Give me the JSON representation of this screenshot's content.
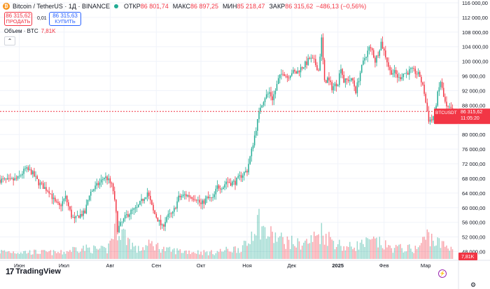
{
  "header": {
    "coin_icon": "bitcoin-icon",
    "title": "Bitcoin / TetherUS · 1Д · BINANCE",
    "open_label": "ОТКР",
    "open_value": "86 801,74",
    "high_label": "МАКС",
    "high_value": "86 897,25",
    "low_label": "МИН",
    "low_value": "85 218,47",
    "close_label": "ЗАКР",
    "close_value": "86 315,62",
    "change_value": "−486,13 (−0,56%)"
  },
  "trade": {
    "sell_price": "86 315,62",
    "sell_label": "ПРОДАТЬ",
    "spread": "0,01",
    "buy_price": "86 315,63",
    "buy_label": "КУПИТЬ"
  },
  "volume_legend": {
    "label": "Объем · BTC",
    "value": "7,81K"
  },
  "collapse_icon": "chevron-up-icon",
  "logo": {
    "text": "TradingView",
    "icon": "tradingview-logo-icon"
  },
  "settings_icon": "gear-icon",
  "bolt_icon": "lightning-icon",
  "price_label": {
    "symbol": "BTCUSDT",
    "price": "86 315,62",
    "countdown": "11:05:20"
  },
  "volume_label": "7,81K",
  "colors": {
    "up": "#22ab94",
    "down": "#f23645",
    "price_line": "#f23645",
    "grid": "#f0f3fa"
  },
  "chart_data": {
    "type": "candlestick",
    "y_axis_ticks": [
      "116 000,00",
      "112 000,00",
      "108 000,00",
      "104 000,00",
      "100 000,00",
      "96 000,00",
      "92 000,00",
      "88 000,00",
      "84 000,00",
      "80 000,00",
      "76 000,00",
      "72 000,00",
      "68 000,00",
      "64 000,00",
      "60 000,00",
      "56 000,00",
      "52 000,00",
      "48 000,00"
    ],
    "y_tick_values": [
      116000,
      112000,
      108000,
      104000,
      100000,
      96000,
      92000,
      88000,
      84000,
      80000,
      76000,
      72000,
      68000,
      64000,
      60000,
      56000,
      52000,
      48000
    ],
    "ylim": [
      46000,
      116000
    ],
    "x_axis_ticks": [
      "Июн",
      "Июл",
      "Авг",
      "Сен",
      "Окт",
      "Ноя",
      "Дек",
      "2025",
      "Фев",
      "Мар"
    ],
    "x_tick_days": [
      1,
      31,
      62,
      93,
      123,
      154,
      184,
      215,
      246,
      274
    ],
    "x_range_days": [
      -12,
      296
    ],
    "last_price": 86315.62,
    "series_anchors": [
      [
        -12,
        67600
      ],
      [
        -5,
        67300
      ],
      [
        0,
        68000
      ],
      [
        5,
        70500
      ],
      [
        9,
        69800
      ],
      [
        14,
        66800
      ],
      [
        18,
        65400
      ],
      [
        21,
        64600
      ],
      [
        25,
        61300
      ],
      [
        28,
        60300
      ],
      [
        32,
        62800
      ],
      [
        36,
        57800
      ],
      [
        38,
        56600
      ],
      [
        41,
        57900
      ],
      [
        45,
        58600
      ],
      [
        48,
        63800
      ],
      [
        51,
        65200
      ],
      [
        55,
        66800
      ],
      [
        58,
        68400
      ],
      [
        60,
        68000
      ],
      [
        63,
        66000
      ],
      [
        64,
        64700
      ],
      [
        66,
        58400
      ],
      [
        67,
        54100
      ],
      [
        70,
        56000
      ],
      [
        73,
        57900
      ],
      [
        76,
        58900
      ],
      [
        80,
        59800
      ],
      [
        82,
        61100
      ],
      [
        87,
        64200
      ],
      [
        91,
        59000
      ],
      [
        94,
        56800
      ],
      [
        97,
        54600
      ],
      [
        100,
        57500
      ],
      [
        104,
        58300
      ],
      [
        108,
        62700
      ],
      [
        112,
        63500
      ],
      [
        116,
        63100
      ],
      [
        120,
        62600
      ],
      [
        123,
        60800
      ],
      [
        127,
        62600
      ],
      [
        131,
        62300
      ],
      [
        134,
        65700
      ],
      [
        138,
        65800
      ],
      [
        140,
        67200
      ],
      [
        143,
        66800
      ],
      [
        146,
        67000
      ],
      [
        150,
        68800
      ],
      [
        154,
        70200
      ],
      [
        157,
        75600
      ],
      [
        160,
        81700
      ],
      [
        163,
        87700
      ],
      [
        166,
        90300
      ],
      [
        169,
        91500
      ],
      [
        171,
        89800
      ],
      [
        173,
        92000
      ],
      [
        175,
        95000
      ],
      [
        178,
        97200
      ],
      [
        181,
        95700
      ],
      [
        184,
        97100
      ],
      [
        187,
        96800
      ],
      [
        190,
        98100
      ],
      [
        194,
        99600
      ],
      [
        196,
        100800
      ],
      [
        199,
        99900
      ],
      [
        202,
        97500
      ],
      [
        204,
        106100
      ],
      [
        206,
        94200
      ],
      [
        208,
        95300
      ],
      [
        211,
        92800
      ],
      [
        215,
        94300
      ],
      [
        217,
        98600
      ],
      [
        219,
        94500
      ],
      [
        222,
        95000
      ],
      [
        225,
        94700
      ],
      [
        227,
        91900
      ],
      [
        230,
        97000
      ],
      [
        233,
        101000
      ],
      [
        236,
        103500
      ],
      [
        238,
        102900
      ],
      [
        240,
        100100
      ],
      [
        242,
        102300
      ],
      [
        244,
        105200
      ],
      [
        247,
        101500
      ],
      [
        250,
        97300
      ],
      [
        253,
        96900
      ],
      [
        256,
        95300
      ],
      [
        259,
        96700
      ],
      [
        261,
        96800
      ],
      [
        264,
        97600
      ],
      [
        267,
        97000
      ],
      [
        270,
        96000
      ],
      [
        273,
        91500
      ],
      [
        274,
        88700
      ],
      [
        276,
        84100
      ],
      [
        278,
        84000
      ],
      [
        280,
        86100
      ],
      [
        282,
        91000
      ],
      [
        284,
        94500
      ],
      [
        286,
        90200
      ],
      [
        288,
        87200
      ],
      [
        291,
        86800
      ],
      [
        292,
        86315.62
      ]
    ],
    "volume_anchors": [
      [
        -12,
        6000
      ],
      [
        30,
        5000
      ],
      [
        40,
        9000
      ],
      [
        60,
        7000
      ],
      [
        66,
        28000
      ],
      [
        80,
        7000
      ],
      [
        90,
        12000
      ],
      [
        100,
        7000
      ],
      [
        130,
        5000
      ],
      [
        150,
        9000
      ],
      [
        155,
        12000
      ],
      [
        158,
        26000
      ],
      [
        162,
        31000
      ],
      [
        166,
        21000
      ],
      [
        172,
        18000
      ],
      [
        178,
        15000
      ],
      [
        188,
        12000
      ],
      [
        196,
        14000
      ],
      [
        204,
        22000
      ],
      [
        210,
        16000
      ],
      [
        220,
        9000
      ],
      [
        240,
        14000
      ],
      [
        250,
        9000
      ],
      [
        268,
        8000
      ],
      [
        276,
        20000
      ],
      [
        280,
        14000
      ],
      [
        288,
        10000
      ],
      [
        292,
        7810
      ]
    ],
    "volume_max": 34000
  }
}
